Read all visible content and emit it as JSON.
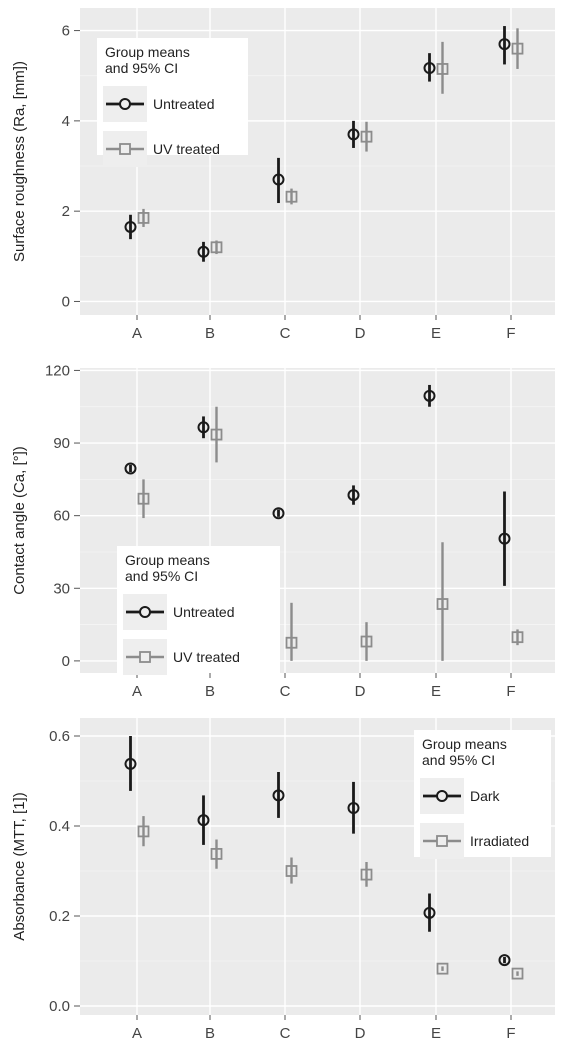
{
  "chart_data": [
    {
      "type": "scatter",
      "variant": "means-with-95ci-error-bars",
      "title": "",
      "xlabel": "",
      "ylabel": "Surface roughness (Ra, [mm])",
      "categories": [
        "A",
        "B",
        "C",
        "D",
        "E",
        "F"
      ],
      "ylim": [
        -0.3,
        6.5
      ],
      "yticks": [
        0,
        2,
        4,
        6
      ],
      "ytick_labels": [
        "0",
        "2",
        "4",
        "6"
      ],
      "grid": true,
      "legend": {
        "title": "Group means\nand 95% CI",
        "position": "top-left",
        "entries": [
          "Untreated",
          "UV treated"
        ]
      },
      "series": [
        {
          "name": "Untreated",
          "marker": "circle",
          "color": "#1a1a1a",
          "values": [
            1.65,
            1.1,
            2.7,
            3.7,
            5.17,
            5.7
          ],
          "ci_low": [
            1.38,
            0.88,
            2.18,
            3.4,
            4.87,
            5.25
          ],
          "ci_high": [
            1.92,
            1.32,
            3.18,
            4.0,
            5.5,
            6.1
          ]
        },
        {
          "name": "UV treated",
          "marker": "square",
          "color": "#8c8c8c",
          "values": [
            1.85,
            1.2,
            2.32,
            3.65,
            5.15,
            5.6
          ],
          "ci_low": [
            1.65,
            1.05,
            2.15,
            3.32,
            4.6,
            5.15
          ],
          "ci_high": [
            2.05,
            1.35,
            2.5,
            3.98,
            5.75,
            6.05
          ]
        }
      ]
    },
    {
      "type": "scatter",
      "variant": "means-with-95ci-error-bars",
      "title": "",
      "xlabel": "",
      "ylabel": "Contact angle (Ca, [°])",
      "categories": [
        "A",
        "B",
        "C",
        "D",
        "E",
        "F"
      ],
      "ylim": [
        -5,
        121
      ],
      "yticks": [
        0,
        30,
        60,
        90,
        120
      ],
      "ytick_labels": [
        "0",
        "30",
        "60",
        "90",
        "120"
      ],
      "grid": true,
      "legend": {
        "title": "Group means\nand 95% CI",
        "position": "lower-left",
        "entries": [
          "Untreated",
          "UV treated"
        ]
      },
      "series": [
        {
          "name": "Untreated",
          "marker": "circle",
          "color": "#1a1a1a",
          "values": [
            79.5,
            96.5,
            61,
            68.5,
            109.5,
            50.5
          ],
          "ci_low": [
            78,
            92,
            59.5,
            64.5,
            105,
            31
          ],
          "ci_high": [
            81,
            101,
            62.5,
            72.5,
            114,
            70
          ]
        },
        {
          "name": "UV treated",
          "marker": "square",
          "color": "#8c8c8c",
          "values": [
            67,
            93.5,
            7.5,
            8,
            23.5,
            9.8
          ],
          "ci_low": [
            59,
            82,
            0,
            0,
            0,
            6.5
          ],
          "ci_high": [
            75,
            105,
            24,
            16,
            49,
            13
          ]
        }
      ]
    },
    {
      "type": "scatter",
      "variant": "means-with-95ci-error-bars",
      "title": "",
      "xlabel": "",
      "ylabel": "Absorbance (MTT, [1])",
      "categories": [
        "A",
        "B",
        "C",
        "D",
        "E",
        "F"
      ],
      "ylim": [
        -0.02,
        0.64
      ],
      "yticks": [
        0.0,
        0.2,
        0.4,
        0.6
      ],
      "ytick_labels": [
        "0.0",
        "0.2",
        "0.4",
        "0.6"
      ],
      "grid": true,
      "legend": {
        "title": "Group means\nand 95% CI",
        "position": "top-right",
        "entries": [
          "Dark",
          "Irradiated"
        ]
      },
      "series": [
        {
          "name": "Dark",
          "marker": "circle",
          "color": "#1a1a1a",
          "values": [
            0.538,
            0.413,
            0.468,
            0.44,
            0.207,
            0.102
          ],
          "ci_low": [
            0.478,
            0.358,
            0.418,
            0.383,
            0.165,
            0.095
          ],
          "ci_high": [
            0.6,
            0.468,
            0.52,
            0.498,
            0.25,
            0.109
          ]
        },
        {
          "name": "Irradiated",
          "marker": "square",
          "color": "#8c8c8c",
          "values": [
            0.388,
            0.338,
            0.3,
            0.292,
            0.083,
            0.072
          ],
          "ci_low": [
            0.355,
            0.305,
            0.272,
            0.265,
            0.078,
            0.067
          ],
          "ci_high": [
            0.422,
            0.37,
            0.33,
            0.32,
            0.088,
            0.077
          ]
        }
      ]
    }
  ]
}
